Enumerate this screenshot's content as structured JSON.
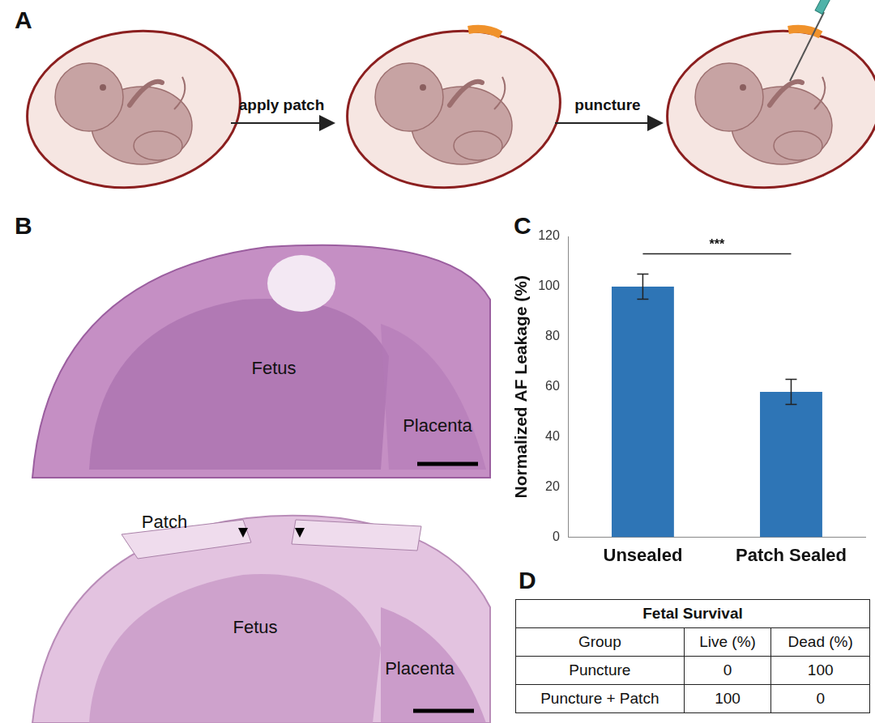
{
  "panel_labels": [
    "A",
    "B",
    "C",
    "D"
  ],
  "diagram": {
    "steps": [
      "apply patch",
      "puncture"
    ]
  },
  "histology": {
    "top": {
      "labels": [
        "Fetus",
        "Placenta"
      ]
    },
    "bottom": {
      "labels": [
        "Patch",
        "Fetus",
        "Placenta"
      ]
    }
  },
  "chart_data": {
    "type": "bar",
    "categories": [
      "Unsealed",
      "Patch Sealed"
    ],
    "values": [
      100,
      58
    ],
    "errors": [
      5,
      5
    ],
    "color": "#2e75b6",
    "y_label": "Normalized AF Leakage (%)",
    "ylim": [
      0,
      120
    ],
    "yticks": [
      0,
      20,
      40,
      60,
      80,
      100,
      120
    ],
    "grid": false,
    "annotations": [
      {
        "text": "***",
        "between": [
          0,
          1
        ]
      }
    ]
  },
  "table": {
    "title": "Fetal Survival",
    "header": [
      "Group",
      "Live (%)",
      "Dead (%)"
    ],
    "rows": [
      [
        "Puncture",
        0,
        100
      ],
      [
        "Puncture + Patch",
        100,
        0
      ]
    ]
  }
}
